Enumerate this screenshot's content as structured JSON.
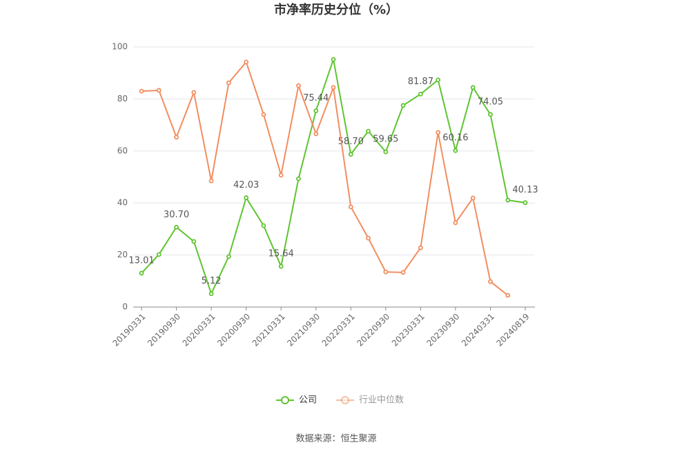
{
  "chart_data": {
    "type": "line",
    "title": "市净率历史分位（%）",
    "categories": [
      "20190331",
      null,
      "20190930",
      null,
      "20200331",
      null,
      "20200930",
      null,
      "20210331",
      null,
      "20210930",
      null,
      "20220331",
      null,
      "20220930",
      null,
      "20230331",
      null,
      "20230930",
      null,
      "20240331",
      null,
      "20240819"
    ],
    "series": [
      {
        "name": "公司",
        "color": "#5ec42f",
        "values": [
          13.01,
          20.2,
          30.7,
          25.2,
          5.12,
          19.4,
          42.03,
          31.3,
          15.64,
          49.3,
          75.44,
          95.2,
          58.7,
          67.6,
          59.65,
          77.5,
          81.87,
          87.3,
          60.16,
          84.4,
          74.05,
          41.1,
          40.13
        ],
        "value_labels": [
          "13.01",
          null,
          "30.70",
          null,
          "5.12",
          null,
          "42.03",
          null,
          "15.64",
          null,
          "75.44",
          null,
          "58.70",
          null,
          "59.65",
          null,
          "81.87",
          null,
          "60.16",
          null,
          "74.05",
          null,
          "40.13"
        ]
      },
      {
        "name": "行业中位数",
        "color": "#f28c5e",
        "values": [
          83.0,
          83.3,
          65.3,
          82.5,
          48.5,
          86.2,
          94.2,
          74.0,
          50.7,
          85.1,
          66.6,
          84.4,
          38.5,
          26.5,
          13.5,
          13.3,
          22.8,
          67.1,
          32.4,
          41.9,
          9.8,
          4.5,
          null
        ]
      }
    ],
    "ylim": [
      0,
      100
    ],
    "yticks": [
      0,
      20,
      40,
      60,
      80,
      100
    ],
    "grid": true,
    "legend": "bottom",
    "source": "数据来源：恒生聚源"
  }
}
